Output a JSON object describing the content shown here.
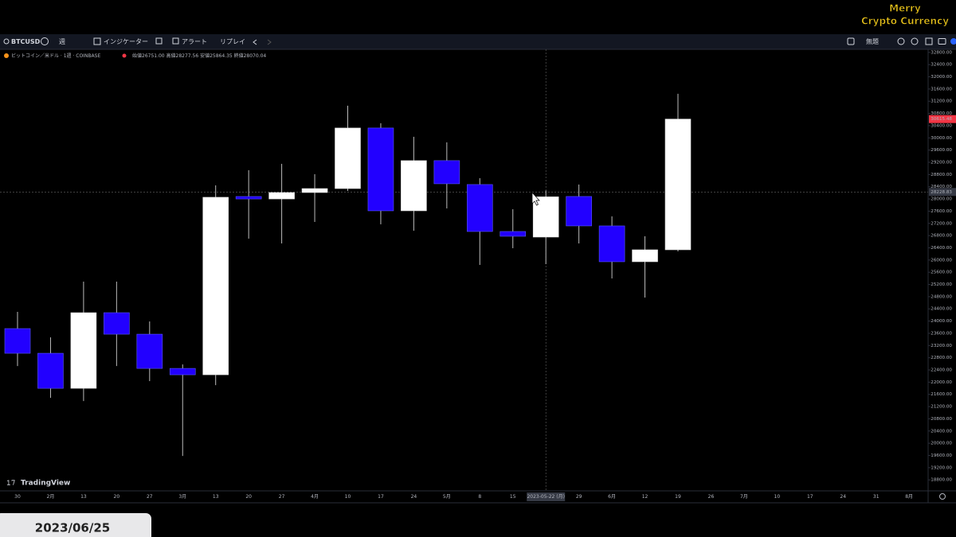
{
  "watermark": [
    "Merry",
    "Crypto Currency"
  ],
  "toolbar": {
    "symbol": "BTCUSD",
    "interval": "週",
    "indicators": "インジケーター",
    "alert": "アラート",
    "replay": "リプレイ",
    "layout_name": "無題"
  },
  "legend": {
    "title": "ビットコイン／米ドル · 1週 · COINBASE",
    "ohlc": "始値26751.00 高値28277.56 安値25864.35 終値28070.04"
  },
  "brand": "TradingView",
  "date_tab": "2023/06/25",
  "chart_data": {
    "type": "candlestick",
    "categories": [
      "30",
      "2月",
      "13",
      "20",
      "27",
      "3月",
      "13",
      "20",
      "27",
      "4月",
      "10",
      "17",
      "24",
      "5月",
      "8",
      "15",
      "2023-05-22 (月)",
      "29",
      "6月",
      "12",
      "19",
      "26",
      "7月",
      "10",
      "17",
      "24",
      "31",
      "8月"
    ],
    "open": [
      23754,
      22946,
      21798,
      24275,
      23571,
      22450,
      22242,
      28080,
      28000,
      28210,
      28340,
      30323,
      27612,
      29255,
      28472,
      26934,
      26751.0,
      28081,
      27117,
      25944,
      26335,
      null,
      null,
      null,
      null,
      null,
      null,
      null
    ],
    "high": [
      24301,
      23467,
      25292,
      25292,
      23988,
      22580,
      28446,
      28942,
      29150,
      28811,
      31053,
      30480,
      30036,
      29854,
      28681,
      27664,
      28277.56,
      28472,
      27430,
      26778,
      31444,
      null,
      null,
      null,
      null,
      null,
      null,
      null
    ],
    "low": [
      22528,
      21486,
      21381,
      22528,
      22034,
      19583,
      21903,
      26700,
      26543,
      27247,
      28263,
      27169,
      26960,
      27690,
      25839,
      26387,
      25864.35,
      26543,
      25396,
      24770,
      26283,
      null,
      null,
      null,
      null,
      null,
      null,
      null
    ],
    "close": [
      22946,
      21798,
      24275,
      23571,
      22450,
      22242,
      28055,
      28000,
      28210,
      28340,
      30323,
      27612,
      29255,
      28498,
      26934,
      26778,
      28070.04,
      27117,
      25944,
      26335,
      30615.48,
      null,
      null,
      null,
      null,
      null,
      null,
      null
    ],
    "up_color": "#ffffff",
    "down_color": "#2200ff",
    "ylim": [
      18440,
      32900
    ],
    "yticks": [
      {
        "value": 32800,
        "label": "32800.00"
      },
      {
        "value": 32400,
        "label": "32400.00"
      },
      {
        "value": 32000,
        "label": "32000.00"
      },
      {
        "value": 31600,
        "label": "31600.00"
      },
      {
        "value": 31200,
        "label": "31200.00"
      },
      {
        "value": 30800,
        "label": "30800.00"
      },
      {
        "value": 30400,
        "label": "30400.00"
      },
      {
        "value": 30000,
        "label": "30000.00"
      },
      {
        "value": 29600,
        "label": "29600.00"
      },
      {
        "value": 29200,
        "label": "29200.00"
      },
      {
        "value": 28800,
        "label": "28800.00"
      },
      {
        "value": 28400,
        "label": "28400.00"
      },
      {
        "value": 28000,
        "label": "28000.00"
      },
      {
        "value": 27600,
        "label": "27600.00"
      },
      {
        "value": 27200,
        "label": "27200.00"
      },
      {
        "value": 26800,
        "label": "26800.00"
      },
      {
        "value": 26400,
        "label": "26400.00"
      },
      {
        "value": 26000,
        "label": "26000.00"
      },
      {
        "value": 25600,
        "label": "25600.00"
      },
      {
        "value": 25200,
        "label": "25200.00"
      },
      {
        "value": 24800,
        "label": "24800.00"
      },
      {
        "value": 24400,
        "label": "24400.00"
      },
      {
        "value": 24000,
        "label": "24000.00"
      },
      {
        "value": 23600,
        "label": "23600.00"
      },
      {
        "value": 23200,
        "label": "23200.00"
      },
      {
        "value": 22800,
        "label": "22800.00"
      },
      {
        "value": 22400,
        "label": "22400.00"
      },
      {
        "value": 22000,
        "label": "22000.00"
      },
      {
        "value": 21600,
        "label": "21600.00"
      },
      {
        "value": 21200,
        "label": "21200.00"
      },
      {
        "value": 20800,
        "label": "20800.00"
      },
      {
        "value": 20400,
        "label": "20400.00"
      },
      {
        "value": 20000,
        "label": "20000.00"
      },
      {
        "value": 19600,
        "label": "19600.00"
      },
      {
        "value": 19200,
        "label": "19200.00"
      },
      {
        "value": 18800,
        "label": "18800.00"
      }
    ],
    "current_price": 30615.48,
    "current_price_color": "#f23645",
    "crosshair": {
      "category_index": 16,
      "price": 28228.83
    }
  }
}
